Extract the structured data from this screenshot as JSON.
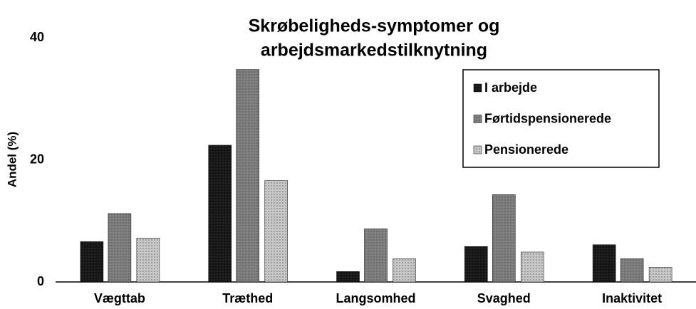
{
  "chart_data": {
    "type": "bar",
    "title": [
      "Skrøbeligheds-symptomer og",
      "arbejdsmarkedstilknytning"
    ],
    "y_label": "Andel (%)",
    "categories": [
      "Vægttab",
      "Træthed",
      "Langsomhed",
      "Svaghed",
      "Inaktivitet"
    ],
    "series": [
      {
        "name": "I arbejde",
        "color": "#151515",
        "values": [
          6.6,
          22.4,
          1.7,
          5.8,
          6.1
        ]
      },
      {
        "name": "Førtidspensionerede",
        "color": "#808080",
        "values": [
          11.2,
          34.8,
          8.7,
          14.3,
          3.8
        ]
      },
      {
        "name": "Pensionerede",
        "color": "#c8c8c8",
        "values": [
          7.2,
          16.6,
          3.8,
          4.9,
          2.4
        ]
      }
    ],
    "ylim": [
      0,
      40
    ],
    "yticks": [
      0,
      20,
      40
    ],
    "grid": false,
    "legend": "upper right"
  }
}
